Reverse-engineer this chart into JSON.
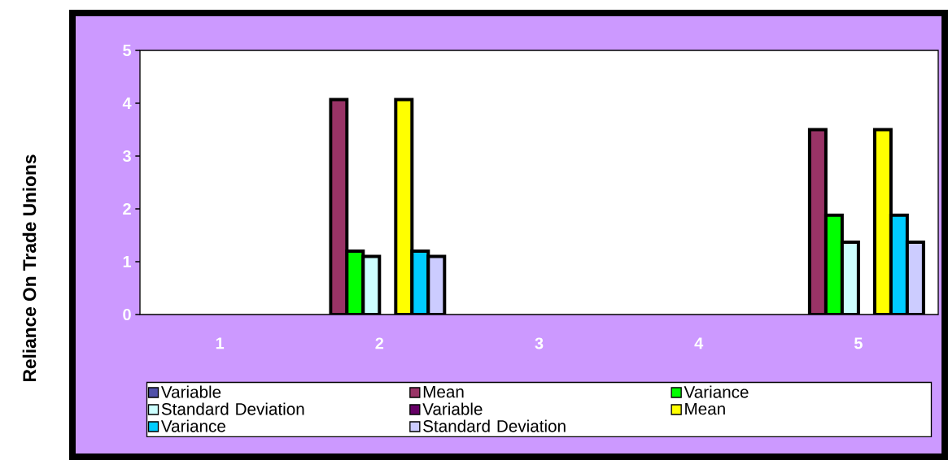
{
  "chart_data": {
    "type": "bar",
    "ylabel": "Reliance On Trade Unions",
    "categories": [
      "1",
      "2",
      "3",
      "4",
      "5"
    ],
    "ylim": [
      0,
      5
    ],
    "yticks": [
      0,
      1,
      2,
      3,
      4,
      5
    ],
    "legend": "bottom",
    "series": [
      {
        "name": "Variable",
        "color": "#5050a8",
        "values": [
          null,
          null,
          null,
          null,
          null
        ]
      },
      {
        "name": "Mean",
        "color": "#993366",
        "values": [
          null,
          4.07,
          null,
          null,
          3.5
        ]
      },
      {
        "name": "Variance",
        "color": "#00ff00",
        "values": [
          null,
          1.2,
          null,
          null,
          1.88
        ]
      },
      {
        "name": "Standard Deviation",
        "color": "#ccffff",
        "values": [
          null,
          1.1,
          null,
          null,
          1.37
        ]
      },
      {
        "name": "Variable",
        "color": "#660066",
        "values": [
          null,
          null,
          null,
          null,
          null
        ]
      },
      {
        "name": "Mean",
        "color": "#ffff00",
        "values": [
          null,
          4.07,
          null,
          null,
          3.5
        ]
      },
      {
        "name": "Variance",
        "color": "#00ccff",
        "values": [
          null,
          1.2,
          null,
          null,
          1.88
        ]
      },
      {
        "name": "Standard Deviation",
        "color": "#ccccff",
        "values": [
          null,
          1.1,
          null,
          null,
          1.37
        ]
      }
    ]
  }
}
